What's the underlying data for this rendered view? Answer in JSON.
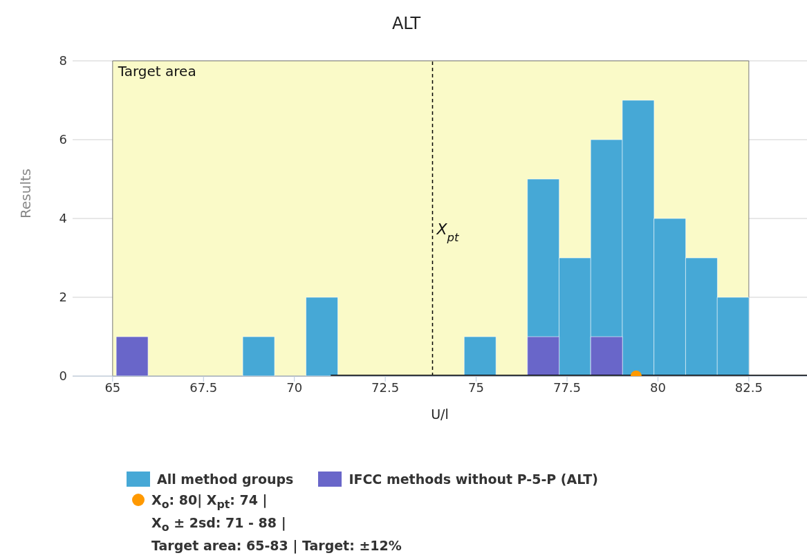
{
  "chart_data": {
    "type": "histogram",
    "title": "ALT",
    "xlabel": "U/l",
    "ylabel": "Results",
    "bins": [
      65.1,
      65.97,
      66.84,
      67.71,
      68.58,
      69.45,
      70.32,
      71.19,
      72.06,
      72.93,
      73.8,
      74.67,
      75.54,
      76.41,
      77.28,
      78.15,
      79.02,
      79.89,
      80.76,
      81.63,
      82.5
    ],
    "series": [
      {
        "name": "All method groups",
        "color": "#46a8d6",
        "values": [
          null,
          0,
          0,
          0,
          1,
          0,
          2,
          0,
          0,
          0,
          0,
          1,
          0,
          5,
          3,
          6,
          7,
          4,
          3,
          2
        ]
      },
      {
        "name": "IFCC methods without P-5-P (ALT)",
        "color": "#6966c9",
        "values": [
          1,
          0,
          0,
          0,
          0,
          0,
          0,
          0,
          0,
          0,
          0,
          0,
          0,
          1,
          0,
          1,
          0,
          0,
          0,
          0
        ]
      },
      {
        "type": "line",
        "color": "#000000",
        "marker": "none",
        "x": [
          71,
          84.1
        ],
        "values": [
          0,
          0
        ]
      },
      {
        "type": "scatter",
        "name": "X$_{o}$: 80| X$_{pt}$: 74 |\nX$_{o}$ ± 2sd: 71 - 88 |\nTarget area: 65-83 | Target: ±12%",
        "color": "#ff9900",
        "x": [
          79.4
        ],
        "values": [
          0
        ]
      }
    ],
    "xlim": [
      63.9,
      84.1
    ],
    "xticks": [
      65,
      67.5,
      70,
      72.5,
      75,
      77.5,
      80,
      82.5
    ],
    "ylim": [
      0,
      8
    ],
    "yticks": [
      0,
      2,
      4,
      6,
      8
    ],
    "grid": "y",
    "legend": "bottom",
    "marker": "circle",
    "ref_lines": [
      {
        "axis": "x",
        "value": 73.8,
        "label": "X$_{pt}$",
        "line_style": "dashed",
        "color": "#000000"
      }
    ],
    "bands": [
      {
        "axis": "x",
        "from": 65,
        "to": 82.5,
        "label": "Target area",
        "color": "#fafac8"
      }
    ]
  }
}
